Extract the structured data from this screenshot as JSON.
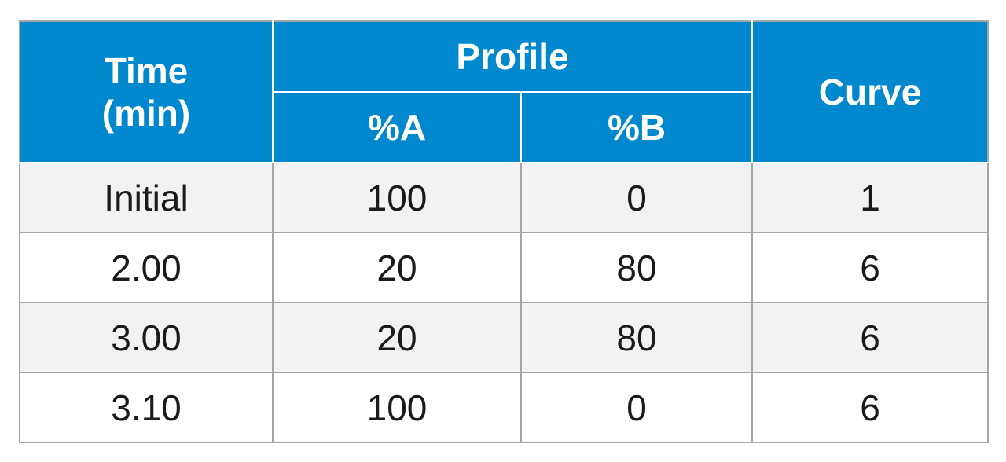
{
  "table": {
    "header": {
      "time_line1": "Time",
      "time_line2": "(min)",
      "profile": "Profile",
      "percent_a": "%A",
      "percent_b": "%B",
      "curve": "Curve"
    },
    "rows": [
      {
        "time": "Initial",
        "a": "100",
        "b": "0",
        "curve": "1"
      },
      {
        "time": "2.00",
        "a": "20",
        "b": "80",
        "curve": "6"
      },
      {
        "time": "3.00",
        "a": "20",
        "b": "80",
        "curve": "6"
      },
      {
        "time": "3.10",
        "a": "100",
        "b": "0",
        "curve": "6"
      }
    ],
    "colors": {
      "header_bg": "#0088cf",
      "header_text": "#ffffff",
      "shaded_row_bg": "#f2f2f4",
      "grid_line": "#a6a6a6"
    }
  }
}
